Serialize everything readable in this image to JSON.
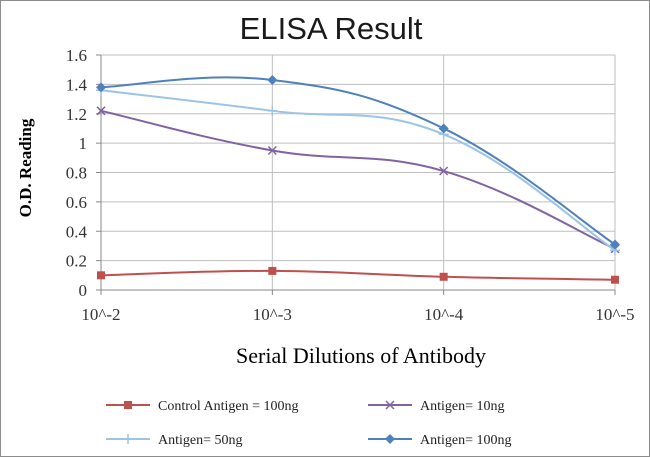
{
  "chart_data": {
    "type": "line",
    "title": "ELISA Result",
    "xlabel": "Serial Dilutions  of Antibody",
    "ylabel": "O.D. Reading",
    "categories": [
      "10^-2",
      "10^-3",
      "10^-4",
      "10^-5"
    ],
    "ylim": [
      0,
      1.6
    ],
    "yticks": [
      "0",
      "0.2",
      "0.4",
      "0.6",
      "0.8",
      "1",
      "1.2",
      "1.4",
      "1.6"
    ],
    "grid": true,
    "legend_position": "bottom",
    "series": [
      {
        "name": "Control Antigen = 100ng",
        "values": [
          0.1,
          0.13,
          0.09,
          0.07
        ],
        "color": "#c0504d",
        "marker": "square"
      },
      {
        "name": "Antigen= 10ng",
        "values": [
          1.22,
          0.95,
          0.81,
          0.28
        ],
        "color": "#8064a2",
        "marker": "x"
      },
      {
        "name": "Antigen= 50ng",
        "values": [
          1.36,
          1.22,
          1.06,
          0.27
        ],
        "color": "#9dc3e6",
        "marker": "plus"
      },
      {
        "name": "Antigen= 100ng",
        "values": [
          1.38,
          1.43,
          1.1,
          0.31
        ],
        "color": "#4f81bd",
        "marker": "diamond"
      }
    ]
  }
}
